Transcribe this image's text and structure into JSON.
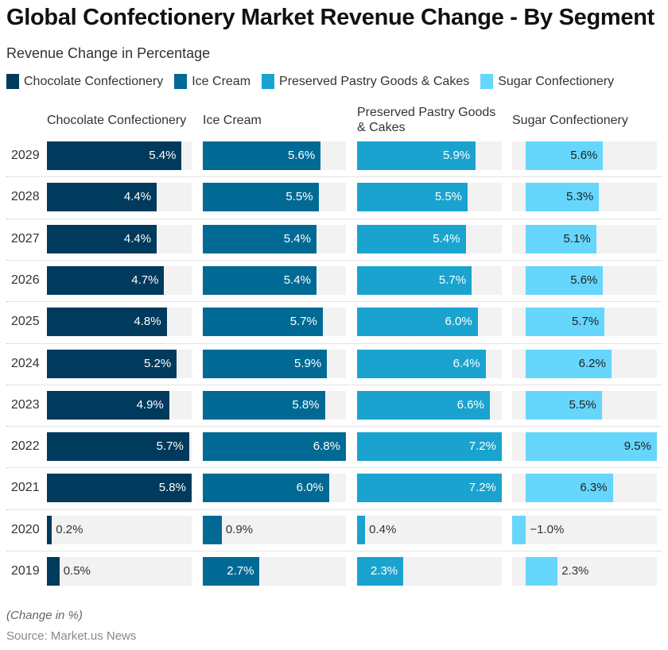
{
  "title": "Global Confectionery Market Revenue Change - By Segment",
  "subtitle": "Revenue Change in Percentage",
  "note": "(Change in %)",
  "source": "Source: Market.us News",
  "chart_data": {
    "type": "bar",
    "orientation": "horizontal",
    "layout": "small-multiples",
    "categories": [
      "2029",
      "2028",
      "2027",
      "2026",
      "2025",
      "2024",
      "2023",
      "2022",
      "2021",
      "2020",
      "2019"
    ],
    "legend": {
      "placement": "top"
    },
    "value_suffix": "%",
    "series": [
      {
        "name": "Chocolate Confectionery",
        "color": "#003a5d",
        "values": [
          5.4,
          4.4,
          4.4,
          4.7,
          4.8,
          5.2,
          4.9,
          5.7,
          5.8,
          0.2,
          0.5
        ]
      },
      {
        "name": "Ice Cream",
        "color": "#006a94",
        "values": [
          5.6,
          5.5,
          5.4,
          5.4,
          5.7,
          5.9,
          5.8,
          6.8,
          6.0,
          0.9,
          2.7
        ]
      },
      {
        "name": "Preserved Pastry Goods & Cakes",
        "color": "#1aa3cf",
        "values": [
          5.9,
          5.5,
          5.4,
          5.7,
          6.0,
          6.4,
          6.6,
          7.2,
          7.2,
          0.4,
          2.3
        ]
      },
      {
        "name": "Sugar Confectionery",
        "color": "#66d6fc",
        "values": [
          5.6,
          5.3,
          5.1,
          5.6,
          5.7,
          6.2,
          5.5,
          9.5,
          6.3,
          -1.0,
          2.3
        ]
      }
    ],
    "labels": [
      [
        "5.4%",
        "4.4%",
        "4.4%",
        "4.7%",
        "4.8%",
        "5.2%",
        "4.9%",
        "5.7%",
        "5.8%",
        "0.2%",
        "0.5%"
      ],
      [
        "5.6%",
        "5.5%",
        "5.4%",
        "5.4%",
        "5.7%",
        "5.9%",
        "5.8%",
        "6.8%",
        "6.0%",
        "0.9%",
        "2.7%"
      ],
      [
        "5.9%",
        "5.5%",
        "5.4%",
        "5.7%",
        "6.0%",
        "6.4%",
        "6.6%",
        "7.2%",
        "7.2%",
        "0.4%",
        "2.3%"
      ],
      [
        "5.6%",
        "5.3%",
        "5.1%",
        "5.6%",
        "5.7%",
        "6.2%",
        "5.5%",
        "9.5%",
        "6.3%",
        "−1.0%",
        "2.3%"
      ]
    ],
    "column_headers": [
      "Chocolate Confectionery",
      "Ice Cream",
      "Preserved Pastry Goods & Cakes",
      "Sugar Confectionery"
    ],
    "grid": false
  }
}
